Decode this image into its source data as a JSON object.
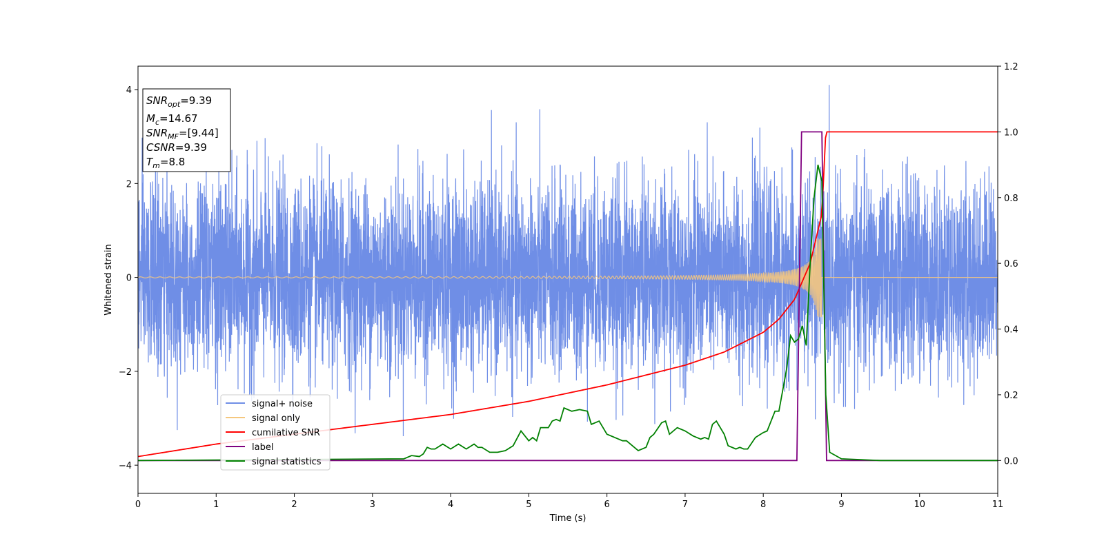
{
  "chart_data": {
    "type": "line",
    "xlabel": "Time (s)",
    "ylabel": "Whitened strain",
    "xlim": [
      0,
      11
    ],
    "ylim": [
      -4.6,
      4.5
    ],
    "y2lim": [
      -0.1,
      1.2
    ],
    "x_ticks": [
      "0",
      "1",
      "2",
      "3",
      "4",
      "5",
      "6",
      "7",
      "8",
      "9",
      "10",
      "11"
    ],
    "y_ticks": [
      "4",
      "2",
      "0",
      "−2",
      "−4"
    ],
    "y_tick_values": [
      4,
      2,
      0,
      -2,
      -4
    ],
    "y2_ticks": [
      "1.2",
      "1.0",
      "0.8",
      "0.6",
      "0.4",
      "0.2",
      "0.0"
    ],
    "y2_tick_values": [
      1.2,
      1.0,
      0.8,
      0.6,
      0.4,
      0.2,
      0.0
    ],
    "grid": false,
    "legend_position": "lower-left",
    "info_box": {
      "snr_opt": {
        "base": "SNR",
        "sub": "opt",
        "value": "=9.39"
      },
      "mc": {
        "base": "M",
        "sub": "c",
        "value": "=14.67"
      },
      "snr_mf": {
        "base": "SNR",
        "sub": "MF",
        "value": "=[9.44]"
      },
      "csnr": {
        "base": "CSNR",
        "sub": "",
        "value": "=9.39"
      },
      "tm": {
        "base": "T",
        "sub": "m",
        "value": "=8.8"
      }
    },
    "series": [
      {
        "name": "signal+ noise",
        "color": "#6f8ee6",
        "axis": "left",
        "noise_sigma": 1.0,
        "time_range": [
          0,
          11
        ],
        "peak_max": 4.1,
        "peak_min": -3.8
      },
      {
        "name": "signal only",
        "color": "#f5c77e",
        "axis": "left",
        "merger_time": 8.75,
        "amplitude_at_merger": 0.85,
        "frequency_start_hz": 8,
        "frequency_end_hz": 60
      },
      {
        "name": "cumilative SNR",
        "color": "#ff0000",
        "axis": "right",
        "x": [
          0,
          1,
          2,
          3,
          4,
          5,
          6,
          7,
          7.5,
          8,
          8.2,
          8.4,
          8.6,
          8.75,
          8.8,
          11
        ],
        "y": [
          0.012,
          0.05,
          0.08,
          0.11,
          0.14,
          0.18,
          0.23,
          0.29,
          0.33,
          0.39,
          0.43,
          0.49,
          0.6,
          0.75,
          1.0,
          1.0
        ]
      },
      {
        "name": "label",
        "color": "#800080",
        "axis": "right",
        "x": [
          0,
          8.43,
          8.49,
          8.75,
          8.81,
          11
        ],
        "y": [
          0,
          0,
          1.0,
          1.0,
          0,
          0
        ]
      },
      {
        "name": "signal statistics",
        "color": "#008000",
        "axis": "right",
        "x": [
          0,
          3.4,
          3.5,
          3.6,
          3.65,
          3.7,
          3.75,
          3.8,
          3.9,
          4.0,
          4.1,
          4.2,
          4.3,
          4.35,
          4.4,
          4.5,
          4.6,
          4.7,
          4.8,
          4.9,
          5.0,
          5.05,
          5.1,
          5.15,
          5.2,
          5.25,
          5.3,
          5.35,
          5.4,
          5.45,
          5.55,
          5.65,
          5.75,
          5.8,
          5.9,
          6.0,
          6.1,
          6.15,
          6.2,
          6.25,
          6.3,
          6.4,
          6.5,
          6.55,
          6.6,
          6.7,
          6.75,
          6.8,
          6.9,
          7.0,
          7.1,
          7.15,
          7.2,
          7.25,
          7.3,
          7.35,
          7.4,
          7.5,
          7.55,
          7.65,
          7.7,
          7.75,
          7.8,
          7.9,
          8.0,
          8.05,
          8.1,
          8.15,
          8.2,
          8.3,
          8.35,
          8.4,
          8.45,
          8.5,
          8.55,
          8.6,
          8.65,
          8.7,
          8.75,
          8.8,
          8.85,
          9.0,
          9.5,
          11
        ],
        "y": [
          0.0,
          0.005,
          0.015,
          0.012,
          0.02,
          0.04,
          0.035,
          0.035,
          0.05,
          0.035,
          0.05,
          0.035,
          0.05,
          0.04,
          0.04,
          0.025,
          0.025,
          0.03,
          0.045,
          0.09,
          0.06,
          0.07,
          0.06,
          0.1,
          0.1,
          0.1,
          0.12,
          0.125,
          0.12,
          0.16,
          0.15,
          0.155,
          0.15,
          0.11,
          0.12,
          0.08,
          0.07,
          0.065,
          0.06,
          0.06,
          0.05,
          0.03,
          0.04,
          0.07,
          0.08,
          0.115,
          0.12,
          0.08,
          0.1,
          0.09,
          0.075,
          0.07,
          0.065,
          0.07,
          0.065,
          0.11,
          0.12,
          0.08,
          0.045,
          0.035,
          0.04,
          0.035,
          0.035,
          0.07,
          0.085,
          0.09,
          0.12,
          0.15,
          0.15,
          0.28,
          0.38,
          0.36,
          0.37,
          0.41,
          0.35,
          0.6,
          0.8,
          0.9,
          0.85,
          0.2,
          0.025,
          0.005,
          0.0,
          0.0
        ]
      }
    ]
  }
}
